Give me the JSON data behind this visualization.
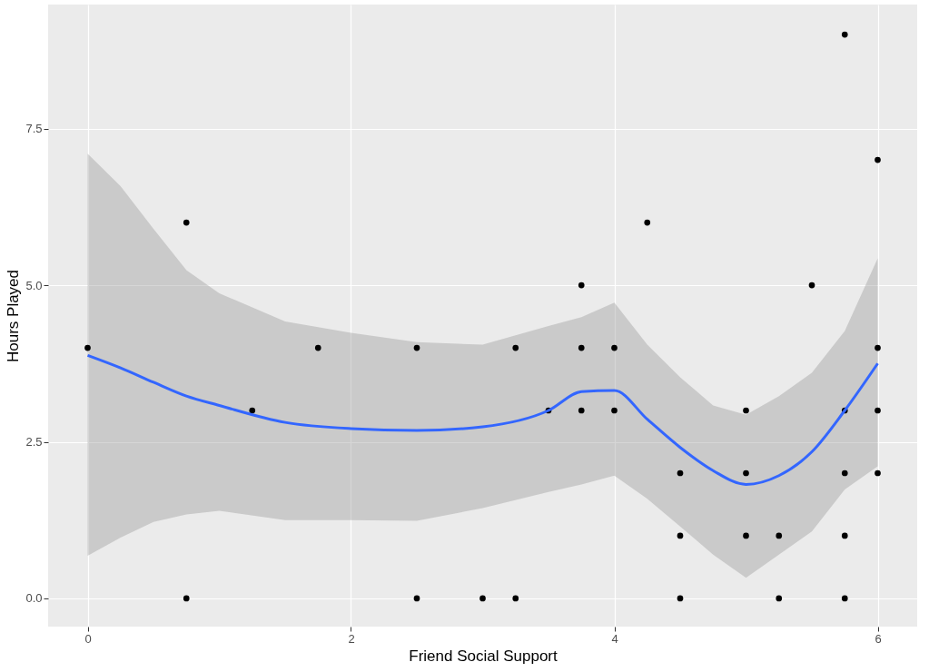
{
  "chart_data": {
    "type": "scatter",
    "xlabel": "Friend Social Support",
    "ylabel": "Hours Played",
    "xlim": [
      -0.3,
      6.3
    ],
    "xticks": [
      0,
      2,
      4,
      6
    ],
    "ylim": [
      -0.45,
      9.48
    ],
    "yticks": [
      {
        "value": 0,
        "label": "0.0"
      },
      2.5,
      {
        "value": 5,
        "label": "5.0"
      },
      7.5
    ],
    "grid": true,
    "series": [
      {
        "color": "#000000",
        "marker": "circle",
        "x": [
          0,
          0.75,
          0.75,
          1.25,
          1.75,
          2.5,
          2.5,
          3,
          3.25,
          3.25,
          3.5,
          3.75,
          3.75,
          3.75,
          4,
          4,
          4.25,
          4.5,
          4.5,
          4.5,
          5,
          5,
          5,
          5.25,
          5.25,
          5.5,
          5.75,
          5.75,
          5.75,
          5.75,
          5.75,
          6,
          6,
          6,
          6
        ],
        "values": [
          4,
          6,
          0,
          3,
          4,
          4,
          0,
          0,
          4,
          0,
          3,
          5,
          4,
          3,
          4,
          3,
          6,
          2,
          1,
          0,
          3,
          2,
          1,
          1,
          0,
          5,
          9,
          3,
          2,
          1,
          0,
          7,
          4,
          3,
          2
        ]
      },
      {
        "type": "line",
        "color": "#3366ff",
        "line_style": "solid",
        "x": [
          0,
          0.25,
          0.5,
          0.75,
          1,
          1.5,
          2,
          2.5,
          3,
          3.5,
          3.75,
          4,
          4.25,
          4.5,
          4.75,
          5,
          5.25,
          5.5,
          5.75,
          6
        ],
        "values": [
          3.88,
          3.68,
          3.45,
          3.23,
          3.08,
          2.81,
          2.71,
          2.68,
          2.74,
          3.0,
          3.3,
          3.32,
          2.86,
          2.41,
          2.04,
          1.82,
          1.96,
          2.34,
          3.0,
          3.75
        ],
        "lower": [
          0.68,
          0.97,
          1.22,
          1.34,
          1.4,
          1.25,
          1.25,
          1.24,
          1.44,
          1.7,
          1.82,
          1.96,
          1.59,
          1.15,
          0.7,
          0.33,
          0.7,
          1.07,
          1.74,
          2.11
        ],
        "upper": [
          7.1,
          6.58,
          5.9,
          5.24,
          4.87,
          4.42,
          4.24,
          4.09,
          4.05,
          4.35,
          4.49,
          4.72,
          4.05,
          3.53,
          3.08,
          2.93,
          3.23,
          3.6,
          4.27,
          5.43
        ]
      }
    ]
  }
}
